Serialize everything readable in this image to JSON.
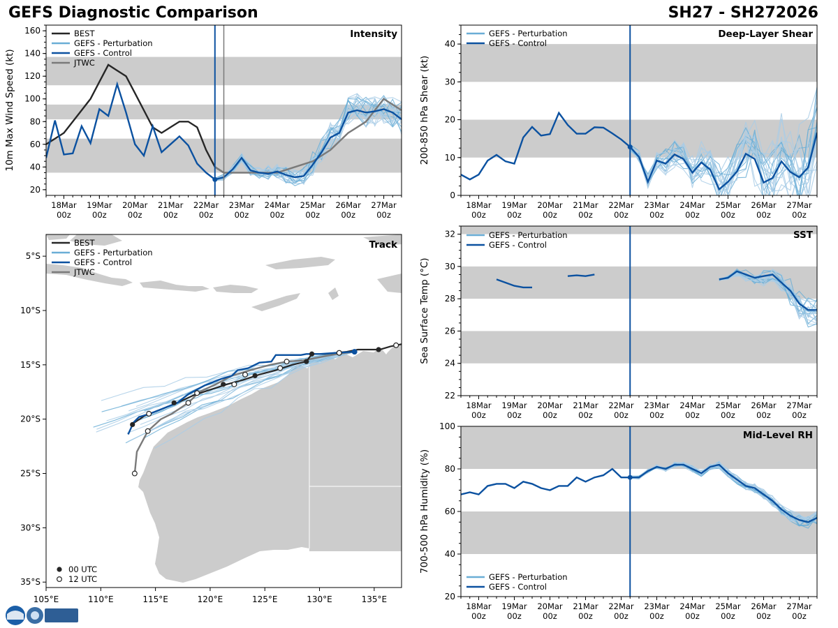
{
  "header": {
    "left_title": "GEFS Diagnostic Comparison",
    "right_title": "SH27 - SH272026"
  },
  "colors": {
    "best": "#262626",
    "perturbation": "#6aaed6",
    "perturbation_light": "#a9cce6",
    "control": "#0b51a0",
    "jtwc": "#7a7a7a",
    "band": "#cccccc",
    "land": "#cccccc",
    "vline_init": "#0b51a0",
    "vline_jtwc": "#7a7a7a"
  },
  "time_ticks": [
    {
      "t": 0,
      "l1": "18Mar",
      "l2": "00z"
    },
    {
      "t": 1,
      "l1": "19Mar",
      "l2": "00z"
    },
    {
      "t": 2,
      "l1": "20Mar",
      "l2": "00z"
    },
    {
      "t": 3,
      "l1": "21Mar",
      "l2": "00z"
    },
    {
      "t": 4,
      "l1": "22Mar",
      "l2": "00z"
    },
    {
      "t": 5,
      "l1": "23Mar",
      "l2": "00z"
    },
    {
      "t": 6,
      "l1": "24Mar",
      "l2": "00z"
    },
    {
      "t": 7,
      "l1": "25Mar",
      "l2": "00z"
    },
    {
      "t": 8,
      "l1": "26Mar",
      "l2": "00z"
    },
    {
      "t": 9,
      "l1": "27Mar",
      "l2": "00z"
    }
  ],
  "legend_labels": {
    "best": "BEST",
    "pert": "GEFS - Perturbation",
    "ctrl": "GEFS - Control",
    "jtwc": "JTWC",
    "utc00": "00 UTC",
    "utc12": "12 UTC"
  },
  "chart_data": [
    {
      "id": "intensity",
      "type": "line",
      "title": "Intensity",
      "ylabel": "10m Max Wind Speed (kt)",
      "xlim": [
        -0.5,
        9.5
      ],
      "ylim": [
        15,
        165
      ],
      "yticks": [
        20,
        40,
        60,
        80,
        100,
        120,
        140,
        160
      ],
      "bands": [
        [
          35,
          65
        ],
        [
          82,
          95
        ],
        [
          112,
          137
        ]
      ],
      "init_time": 4.25,
      "jtwc_time": 4.5,
      "series": [
        {
          "name": "BEST",
          "x": [
            -0.5,
            -0.25,
            0,
            0.25,
            0.5,
            0.75,
            1,
            1.25,
            1.5,
            1.75,
            2,
            2.25,
            2.5,
            2.75,
            3,
            3.25,
            3.5,
            3.75,
            4,
            4.25,
            4.5
          ],
          "values": [
            60,
            65,
            70,
            80,
            90,
            100,
            115,
            130,
            125,
            120,
            105,
            90,
            75,
            70,
            75,
            80,
            80,
            75,
            55,
            40,
            35
          ]
        },
        {
          "name": "JTWC",
          "x": [
            4.25,
            4.5,
            5,
            5.5,
            6,
            6.5,
            7,
            7.5,
            8,
            8.5,
            9,
            9.5
          ],
          "values": [
            40,
            35,
            35,
            35,
            35,
            40,
            45,
            55,
            70,
            80,
            100,
            90
          ]
        },
        {
          "name": "GEFS - Control",
          "x": [
            -0.5,
            -0.25,
            0,
            0.25,
            0.5,
            0.75,
            1,
            1.25,
            1.5,
            1.75,
            2,
            2.25,
            2.5,
            2.75,
            3,
            3.25,
            3.5,
            3.75,
            4,
            4.25,
            4.5,
            4.75,
            5,
            5.25,
            5.5,
            5.75,
            6,
            6.25,
            6.5,
            6.75,
            7,
            7.25,
            7.5,
            7.75,
            8,
            8.25,
            8.5,
            8.75,
            9,
            9.25,
            9.5
          ],
          "values": [
            48,
            81,
            51,
            52,
            76,
            61,
            91,
            85,
            113,
            88,
            60,
            50,
            76,
            53,
            60,
            67,
            59,
            43,
            35,
            29,
            31,
            38,
            48,
            37,
            35,
            34,
            36,
            33,
            31,
            32,
            42,
            53,
            66,
            70,
            88,
            90,
            88,
            89,
            91,
            88,
            82
          ]
        }
      ]
    },
    {
      "id": "shear",
      "type": "line",
      "title": "Deep-Layer Shear",
      "ylabel": "200-850 hPa Shear (kt)",
      "xlim": [
        -0.5,
        9.5
      ],
      "ylim": [
        0,
        45
      ],
      "yticks": [
        0,
        10,
        20,
        30,
        40
      ],
      "bands": [
        [
          10,
          20
        ],
        [
          30,
          40
        ]
      ],
      "init_time": 4.25,
      "series": [
        {
          "name": "GEFS - Control",
          "x": [
            -0.5,
            -0.25,
            0,
            0.25,
            0.5,
            0.75,
            1,
            1.25,
            1.5,
            1.75,
            2,
            2.25,
            2.5,
            2.75,
            3,
            3.25,
            3.5,
            3.75,
            4,
            4.25,
            4.5,
            4.75,
            5,
            5.25,
            5.5,
            5.75,
            6,
            6.25,
            6.5,
            6.75,
            7,
            7.25,
            7.5,
            7.75,
            8,
            8.25,
            8.5,
            8.75,
            9,
            9.25,
            9.5
          ],
          "values": [
            5.5,
            4.2,
            5.5,
            9.2,
            10.7,
            9.0,
            8.4,
            15.3,
            18.1,
            15.8,
            16.2,
            21.8,
            18.6,
            16.3,
            16.3,
            18.0,
            17.9,
            16.4,
            14.8,
            12.8,
            10.2,
            3.6,
            9.2,
            8.4,
            10.8,
            9.6,
            6.0,
            8.7,
            6.8,
            1.6,
            3.6,
            6.3,
            11.0,
            9.6,
            3.4,
            4.6,
            9.0,
            6.2,
            4.8,
            7.4,
            16.6
          ]
        }
      ]
    },
    {
      "id": "sst",
      "type": "line",
      "title": "SST",
      "ylabel": "Sea Surface Temp (°C)",
      "xlim": [
        -0.5,
        9.5
      ],
      "ylim": [
        22,
        32.5
      ],
      "yticks": [
        22,
        24,
        26,
        28,
        30,
        32
      ],
      "bands": [
        [
          24,
          26
        ],
        [
          28,
          30
        ],
        [
          32,
          33
        ]
      ],
      "init_time": 4.25,
      "series": [
        {
          "name": "GEFS - Control",
          "segments": [
            {
              "x": [
                0.5,
                0.75,
                1,
                1.25,
                1.5
              ],
              "values": [
                29.2,
                29.0,
                28.8,
                28.7,
                28.7
              ]
            },
            {
              "x": [
                2.5,
                2.75,
                3,
                3.25
              ],
              "values": [
                29.4,
                29.45,
                29.4,
                29.5
              ]
            },
            {
              "x": [
                6.75,
                7,
                7.25,
                7.5,
                7.75,
                8,
                8.25,
                8.5,
                8.75,
                9,
                9.25,
                9.5
              ],
              "values": [
                29.2,
                29.3,
                29.7,
                29.5,
                29.3,
                29.4,
                29.5,
                29.0,
                28.5,
                27.7,
                27.3,
                27.3
              ]
            }
          ]
        }
      ]
    },
    {
      "id": "rh",
      "type": "line",
      "title": "Mid-Level RH",
      "ylabel": "700-500 hPa Humidity (%)",
      "xlim": [
        -0.5,
        9.5
      ],
      "ylim": [
        20,
        100
      ],
      "yticks": [
        20,
        40,
        60,
        80,
        100
      ],
      "bands": [
        [
          40,
          60
        ],
        [
          80,
          100
        ]
      ],
      "init_time": 4.25,
      "series": [
        {
          "name": "GEFS - Control",
          "x": [
            -0.5,
            -0.25,
            0,
            0.25,
            0.5,
            0.75,
            1,
            1.25,
            1.5,
            1.75,
            2,
            2.25,
            2.5,
            2.75,
            3,
            3.25,
            3.5,
            3.75,
            4,
            4.25,
            4.5,
            4.75,
            5,
            5.25,
            5.5,
            5.75,
            6,
            6.25,
            6.5,
            6.75,
            7,
            7.25,
            7.5,
            7.75,
            8,
            8.25,
            8.5,
            8.75,
            9,
            9.25,
            9.5
          ],
          "values": [
            68,
            69,
            68,
            72,
            73,
            73,
            71,
            74,
            73,
            71,
            70,
            72,
            72,
            76,
            74,
            76,
            77,
            80,
            76,
            76,
            76,
            79,
            81,
            80,
            82,
            82,
            80,
            78,
            81,
            82,
            78,
            75,
            72,
            71,
            68,
            65,
            61,
            58,
            56,
            55,
            57
          ]
        }
      ]
    },
    {
      "id": "track",
      "type": "line",
      "title": "Track",
      "xlim": [
        105,
        137.5
      ],
      "ylim": [
        -35.5,
        -3
      ],
      "xticks": [
        105,
        110,
        115,
        120,
        125,
        130,
        135
      ],
      "yticks": [
        -5,
        -10,
        -15,
        -20,
        -25,
        -30,
        -35
      ],
      "xticklabels": [
        "105°E",
        "110°E",
        "115°E",
        "120°E",
        "125°E",
        "130°E",
        "135°E"
      ],
      "yticklabels": [
        "5°S",
        "10°S",
        "15°S",
        "20°S",
        "25°S",
        "30°S",
        "35°S"
      ],
      "series": [
        {
          "name": "BEST",
          "lon": [
            138.5,
            137.5,
            136.5,
            135.5,
            134.5,
            133.5,
            132.5,
            131.5,
            130.5,
            129.3,
            128.8,
            127.5,
            126,
            124.5,
            123,
            121.5,
            120,
            118.5,
            117,
            115.5,
            114,
            112.8
          ],
          "lat": [
            -13.3,
            -13.1,
            -13.3,
            -13.6,
            -13.6,
            -13.6,
            -13.8,
            -13.9,
            -14.0,
            -14.0,
            -14.7,
            -15.0,
            -15.5,
            -15.9,
            -16.4,
            -16.8,
            -17.3,
            -17.8,
            -18.5,
            -19.1,
            -19.7,
            -20.5
          ]
        },
        {
          "name": "BEST_00UTC",
          "lon": [
            135.4,
            129.3,
            128.8,
            124.1,
            121.2,
            116.7,
            112.9
          ],
          "lat": [
            -13.6,
            -14.0,
            -14.7,
            -16.0,
            -16.8,
            -18.5,
            -20.5
          ]
        },
        {
          "name": "BEST_12UTC",
          "lon": [
            137.0,
            131.8,
            126.4,
            122.2,
            118.8,
            114.4
          ],
          "lat": [
            -13.2,
            -13.9,
            -15.3,
            -16.8,
            -17.6,
            -19.5
          ]
        },
        {
          "name": "JTWC",
          "lon": [
            133.2,
            131.6,
            130.0,
            128.5,
            127.0,
            125.5,
            124.0,
            122.0,
            120.5,
            119.0,
            118.0,
            116.5,
            115.5,
            114.3,
            113.3,
            113.1
          ],
          "lat": [
            -13.8,
            -14.0,
            -14.3,
            -14.6,
            -14.7,
            -15.0,
            -15.4,
            -16.0,
            -16.8,
            -17.5,
            -18.5,
            -19.5,
            -20.0,
            -21.1,
            -23.0,
            -25.0
          ]
        },
        {
          "name": "JTWC_12UTC",
          "lon": [
            131.8,
            127.0,
            123.2,
            118.0,
            114.3,
            113.1
          ],
          "lat": [
            -13.9,
            -14.7,
            -15.9,
            -18.5,
            -21.1,
            -25.0
          ]
        },
        {
          "name": "GEFS - Control",
          "lon": [
            133.2,
            131.5,
            130,
            128.8,
            128.3,
            126,
            125.6,
            124.5,
            123.5,
            122.5,
            122,
            121,
            119.5,
            118,
            117,
            115.5,
            114.5,
            113.5,
            113,
            112.5
          ],
          "lat": [
            -13.8,
            -13.9,
            -14.0,
            -14.0,
            -14.1,
            -14.1,
            -14.7,
            -14.8,
            -15.3,
            -15.5,
            -16.0,
            -16.3,
            -16.9,
            -17.7,
            -18.5,
            -19.1,
            -19.5,
            -19.8,
            -20.3,
            -21.4
          ]
        }
      ]
    }
  ]
}
